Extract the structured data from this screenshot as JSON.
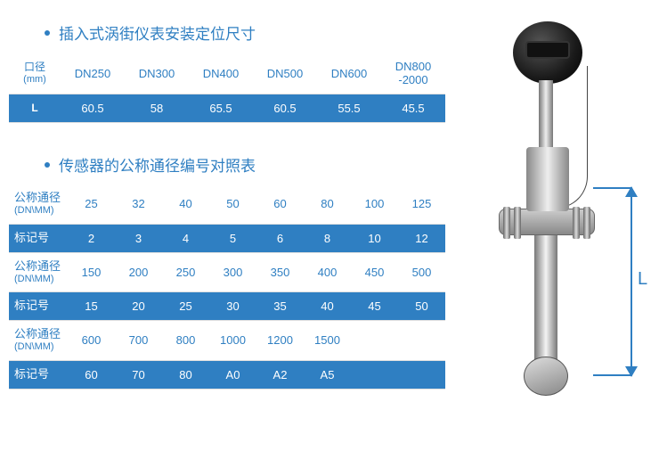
{
  "colors": {
    "accent": "#2f7fc2",
    "row_blue_bg": "#2f7fc2",
    "row_blue_text": "#ffffff",
    "text_accent": "#2f7fc2",
    "grid": "#e0e0e0",
    "bg": "#ffffff"
  },
  "section1": {
    "title": "插入式涡街仪表安装定位尺寸",
    "header_label": "口径",
    "header_sub": "(mm)",
    "columns": [
      "DN250",
      "DN300",
      "DN400",
      "DN500",
      "DN600",
      "DN800\n-2000"
    ],
    "row_label": "L",
    "values": [
      "60.5",
      "58",
      "65.5",
      "60.5",
      "55.5",
      "45.5"
    ]
  },
  "section2": {
    "title": "传感器的公称通径编号对照表",
    "label_nominal": "公称通径",
    "label_nominal_sub": "(DN\\MM)",
    "label_mark": "标记号",
    "rows": [
      {
        "nominal": [
          "25",
          "32",
          "40",
          "50",
          "60",
          "80",
          "100",
          "125"
        ],
        "mark": [
          "2",
          "3",
          "4",
          "5",
          "6",
          "8",
          "10",
          "12"
        ]
      },
      {
        "nominal": [
          "150",
          "200",
          "250",
          "300",
          "350",
          "400",
          "450",
          "500"
        ],
        "mark": [
          "15",
          "20",
          "25",
          "30",
          "35",
          "40",
          "45",
          "50"
        ]
      },
      {
        "nominal": [
          "600",
          "700",
          "800",
          "1000",
          "1200",
          "1500",
          "",
          ""
        ],
        "mark": [
          "60",
          "70",
          "80",
          "A0",
          "A2",
          "A5",
          "",
          ""
        ]
      }
    ]
  },
  "diagram": {
    "dimension_label": "L"
  }
}
